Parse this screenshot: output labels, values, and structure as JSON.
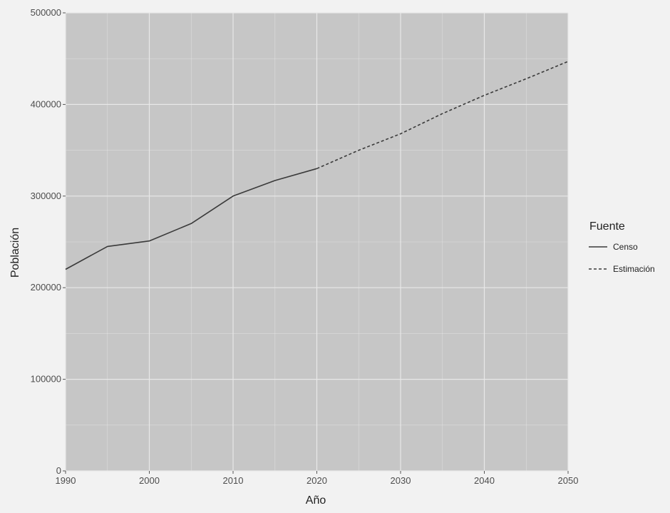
{
  "chart_data": {
    "type": "line",
    "title": "",
    "xlabel": "Año",
    "ylabel": "Población",
    "xlim": [
      1990,
      2050
    ],
    "ylim": [
      0,
      500000
    ],
    "x_ticks": [
      1990,
      2000,
      2010,
      2020,
      2030,
      2040,
      2050
    ],
    "x_tick_labels": [
      "1990",
      "2000",
      "2010",
      "2020",
      "2030",
      "2040",
      "2050"
    ],
    "y_ticks": [
      0,
      100000,
      200000,
      300000,
      400000,
      500000
    ],
    "y_tick_labels": [
      "0",
      "100000",
      "200000",
      "300000",
      "400000",
      "500000"
    ],
    "grid": true,
    "legend": {
      "title": "Fuente",
      "position": "right",
      "entries": [
        "Censo",
        "Estimación"
      ]
    },
    "series": [
      {
        "name": "Censo",
        "style": "solid",
        "x": [
          1990,
          1995,
          2000,
          2005,
          2010,
          2015,
          2020
        ],
        "y": [
          220000,
          245000,
          251000,
          270000,
          300000,
          317000,
          330000
        ]
      },
      {
        "name": "Estimación",
        "style": "dashed",
        "x": [
          2020,
          2025,
          2030,
          2035,
          2040,
          2045,
          2050
        ],
        "y": [
          330000,
          350000,
          368000,
          390000,
          410000,
          428000,
          447000
        ]
      }
    ]
  },
  "colors": {
    "panel_background": "#c6c6c6",
    "page_background": "#f2f2f2",
    "grid": "#e8e8e8",
    "line": "#3a3a3a"
  }
}
